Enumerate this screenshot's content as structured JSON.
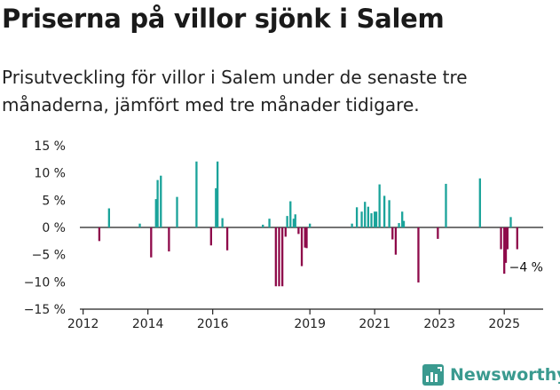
{
  "title": "Priserna på villor sjönk i Salem",
  "subtitle": "Prisutveckling för villor i Salem under de senaste tre månaderna, jämfört med tre månader tidigare.",
  "brand": {
    "name": "Newsworthy",
    "color": "#3a9a8f",
    "icon": "newsworthy-logo-icon"
  },
  "chart_data": {
    "type": "bar",
    "title": "",
    "xlabel": "",
    "ylabel": "",
    "ylim": [
      -15,
      15
    ],
    "yticks": [
      15,
      10,
      5,
      0,
      -5,
      -10,
      -15
    ],
    "ytick_labels": [
      "15 %",
      "10 %",
      "5 %",
      "0 %",
      "−5 %",
      "−10 %",
      "−15 %"
    ],
    "xlim": [
      2011.9,
      2026.2
    ],
    "xticks": [
      2012,
      2014,
      2016,
      2019,
      2021,
      2023,
      2025
    ],
    "xtick_labels": [
      "2012",
      "2014",
      "2016",
      "2019",
      "2021",
      "2023",
      "2025"
    ],
    "colors": {
      "positive": "#1aa39a",
      "negative": "#8e0a4a"
    },
    "grid": false,
    "annotation": {
      "text": "−4 %",
      "x": 2025.4,
      "y": -4
    },
    "x": [
      2012.5,
      2012.8,
      2013.75,
      2014.1,
      2014.25,
      2014.3,
      2014.4,
      2014.65,
      2014.9,
      2015.5,
      2015.95,
      2016.1,
      2016.15,
      2016.3,
      2016.45,
      2017.55,
      2017.75,
      2017.95,
      2018.05,
      2018.15,
      2018.25,
      2018.3,
      2018.4,
      2018.5,
      2018.55,
      2018.65,
      2018.75,
      2018.85,
      2018.9,
      2019.0,
      2020.3,
      2020.45,
      2020.6,
      2020.7,
      2020.8,
      2020.9,
      2021.0,
      2021.05,
      2021.15,
      2021.3,
      2021.45,
      2021.55,
      2021.65,
      2021.75,
      2021.85,
      2021.9,
      2022.35,
      2022.95,
      2023.2,
      2024.25,
      2024.9,
      2025.0,
      2025.05,
      2025.1,
      2025.2,
      2025.4
    ],
    "values": [
      -2.5,
      3.5,
      0.7,
      -5.5,
      5.2,
      8.7,
      9.5,
      -4.4,
      5.6,
      12.1,
      -3.3,
      7.2,
      12.1,
      1.7,
      -4.2,
      0.5,
      1.6,
      -10.8,
      -10.8,
      -10.8,
      -1.7,
      2.1,
      4.8,
      1.6,
      2.4,
      -1.2,
      -7.1,
      -3.7,
      -3.8,
      0.7,
      0.7,
      3.7,
      2.9,
      4.7,
      3.8,
      2.6,
      2.9,
      2.9,
      7.9,
      5.8,
      5.0,
      -2.2,
      -5.0,
      0.8,
      2.9,
      1.2,
      -10.1,
      -2.1,
      8.0,
      9.0,
      -4.0,
      -8.5,
      -6.5,
      -4.0,
      1.9,
      -4.0
    ]
  }
}
